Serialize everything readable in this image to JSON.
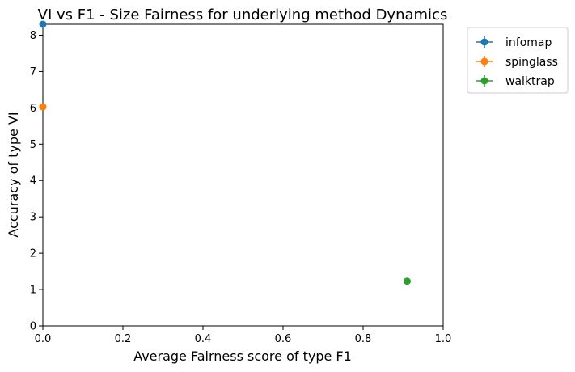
{
  "chart_data": {
    "type": "scatter",
    "title": "VI vs F1 - Size Fairness for underlying method Dynamics",
    "xlabel": "Average Fairness score of type F1",
    "ylabel": "Accuracy of type VI",
    "xlim": [
      0.0,
      1.0
    ],
    "ylim": [
      0,
      8.3
    ],
    "xticks": [
      "0.0",
      "0.2",
      "0.4",
      "0.6",
      "0.8",
      "1.0"
    ],
    "yticks": [
      "0",
      "1",
      "2",
      "3",
      "4",
      "5",
      "6",
      "7",
      "8"
    ],
    "grid": false,
    "legend_position": "outside-top-right",
    "series": [
      {
        "name": "infomap",
        "color": "#1f77b4",
        "x": [
          0.0
        ],
        "y": [
          8.3
        ]
      },
      {
        "name": "spinglass",
        "color": "#ff7f0e",
        "x": [
          0.0
        ],
        "y": [
          6.03
        ]
      },
      {
        "name": "walktrap",
        "color": "#2ca02c",
        "x": [
          0.91
        ],
        "y": [
          1.23
        ]
      }
    ]
  }
}
